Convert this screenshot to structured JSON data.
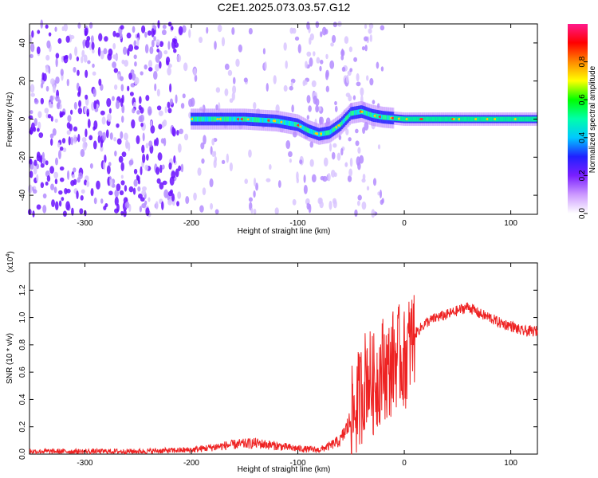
{
  "title": "C2E1.2025.073.03.57.G12",
  "chart_data": [
    {
      "type": "heatmap",
      "xlabel": "Height of straight line (km)",
      "ylabel": "Frequency (Hz)",
      "xlim": [
        -352,
        125
      ],
      "ylim": [
        -50,
        50
      ],
      "xticks": [
        -300,
        -200,
        -100,
        0,
        100
      ],
      "yticks": [
        -40,
        -20,
        0,
        20,
        40
      ],
      "colorbar": {
        "label": "Normalized spectral amplitude",
        "range": [
          0,
          1
        ],
        "ticks": [
          "0.0",
          "0.2",
          "0.4",
          "0.6",
          "0.8"
        ],
        "colors": [
          "#ffffff",
          "#cc99ff",
          "#7a1fff",
          "#2020ff",
          "#00c8ff",
          "#00ffaa",
          "#00ff00",
          "#ffff00",
          "#ff8800",
          "#ff0000",
          "#ff1a8c"
        ]
      },
      "ridge": [
        {
          "x": -200,
          "f": 0
        },
        {
          "x": -180,
          "f": 0
        },
        {
          "x": -150,
          "f": 0
        },
        {
          "x": -120,
          "f": -1
        },
        {
          "x": -100,
          "f": -3
        },
        {
          "x": -90,
          "f": -6
        },
        {
          "x": -80,
          "f": -8
        },
        {
          "x": -70,
          "f": -7
        },
        {
          "x": -60,
          "f": -3
        },
        {
          "x": -50,
          "f": 3
        },
        {
          "x": -40,
          "f": 4
        },
        {
          "x": -30,
          "f": 2
        },
        {
          "x": -20,
          "f": 1
        },
        {
          "x": 0,
          "f": 0
        },
        {
          "x": 50,
          "f": 0
        },
        {
          "x": 100,
          "f": 0
        },
        {
          "x": 125,
          "f": 0
        }
      ]
    },
    {
      "type": "line",
      "xlabel": "Height of straight line (km)",
      "ylabel": "SNR (10 * v/v)",
      "scale_label": "(x10",
      "scale_exp": "4",
      "xlim": [
        -352,
        125
      ],
      "ylim": [
        0,
        1.4
      ],
      "xticks": [
        -300,
        -200,
        -100,
        0,
        100
      ],
      "yticks": [
        "0.0",
        "0.2",
        "0.4",
        "0.6",
        "0.8",
        "1.0",
        "1.2"
      ],
      "color": "#ee2222",
      "series": [
        {
          "x": [
            -352,
            -300,
            -250,
            -200,
            -180,
            -160,
            -140,
            -120,
            -100,
            -80,
            -70,
            -60,
            -50,
            -45,
            -40,
            -35,
            -30,
            -25,
            -20,
            -15,
            -10,
            -5,
            0,
            5,
            10,
            20,
            30,
            40,
            50,
            60,
            70,
            80,
            90,
            100,
            110,
            125
          ],
          "y": [
            0.02,
            0.02,
            0.02,
            0.03,
            0.05,
            0.07,
            0.08,
            0.06,
            0.04,
            0.03,
            0.06,
            0.1,
            0.25,
            0.35,
            0.45,
            0.6,
            0.5,
            0.55,
            0.65,
            0.6,
            0.7,
            0.72,
            0.68,
            0.8,
            0.88,
            0.96,
            1.0,
            1.02,
            1.05,
            1.08,
            1.03,
            1.0,
            0.96,
            0.94,
            0.9,
            0.9
          ]
        }
      ]
    }
  ]
}
